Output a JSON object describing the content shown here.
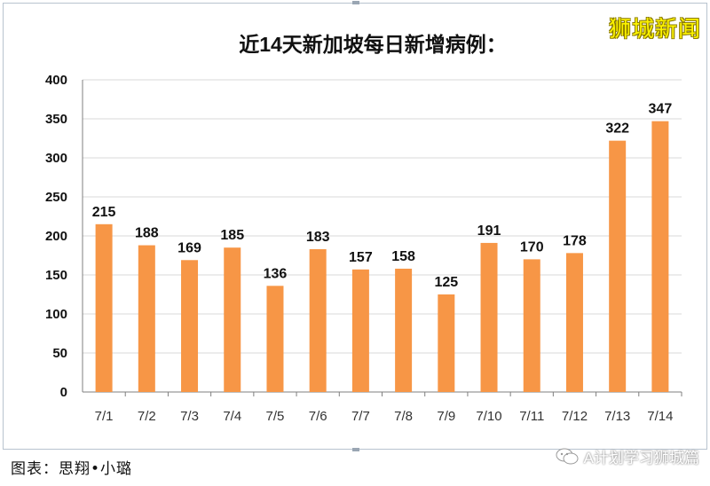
{
  "watermark": "狮城新闻",
  "footer": {
    "credit": "图表：思翔•小璐",
    "account": "A计划学习狮城篇",
    "account_icon": "wechat-icon"
  },
  "colors": {
    "bar": "#F79646",
    "grid": "#d9d9d9",
    "axis": "#7f7f7f",
    "frame": "#b8c3cf"
  },
  "chart_data": {
    "type": "bar",
    "title": "近14天新加坡每日新增病例：",
    "xlabel": "",
    "ylabel": "",
    "categories": [
      "7/1",
      "7/2",
      "7/3",
      "7/4",
      "7/5",
      "7/6",
      "7/7",
      "7/8",
      "7/9",
      "7/10",
      "7/11",
      "7/12",
      "7/13",
      "7/14"
    ],
    "values": [
      215,
      188,
      169,
      185,
      136,
      183,
      157,
      158,
      125,
      191,
      170,
      178,
      322,
      347
    ],
    "ylim": [
      0,
      400
    ],
    "yticks": [
      0,
      50,
      100,
      150,
      200,
      250,
      300,
      350,
      400
    ],
    "grid": true,
    "legend": "none",
    "data_labels": true
  }
}
